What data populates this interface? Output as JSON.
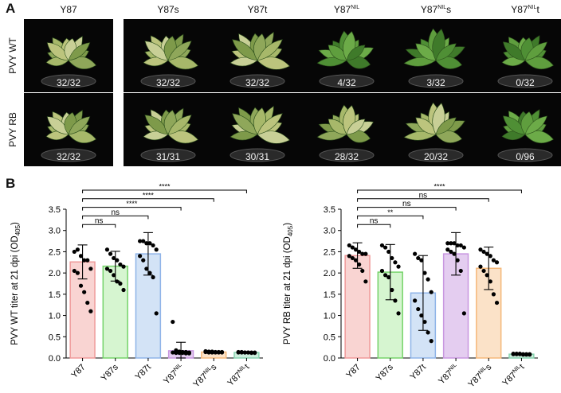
{
  "panel_a": {
    "letter": "A",
    "columns": [
      {
        "base": "Y87",
        "sup": "",
        "suffix": ""
      },
      {
        "base": "Y87s",
        "sup": "",
        "suffix": ""
      },
      {
        "base": "Y87t",
        "sup": "",
        "suffix": ""
      },
      {
        "base": "Y87",
        "sup": "NIL",
        "suffix": ""
      },
      {
        "base": "Y87",
        "sup": "NIL",
        "suffix": "s"
      },
      {
        "base": "Y87",
        "sup": "NIL",
        "suffix": "t"
      }
    ],
    "rows": [
      {
        "label": "PVY WT",
        "counts": [
          "32/32",
          "32/32",
          "32/32",
          "4/32",
          "3/32",
          "0/32"
        ]
      },
      {
        "label": "PVY RB",
        "counts": [
          "32/32",
          "31/31",
          "30/31",
          "28/32",
          "20/32",
          "0/96"
        ]
      }
    ]
  },
  "panel_b": {
    "letter": "B"
  },
  "chart_data": [
    {
      "type": "bar",
      "ylabel": "PVY WT  titer at 21 dpi (OD405)",
      "ylabel_base": "PVY WT  titer at 21 dpi (OD",
      "ylabel_sub": "405",
      "ylabel_end": ")",
      "ylim": [
        0,
        3.5
      ],
      "yticks": [
        "0.0",
        "0.5",
        "1.0",
        "1.5",
        "2.0",
        "2.5",
        "3.0",
        "3.5"
      ],
      "categories": [
        {
          "base": "Y87",
          "sup": "",
          "suffix": ""
        },
        {
          "base": "Y87s",
          "sup": "",
          "suffix": ""
        },
        {
          "base": "Y87t",
          "sup": "",
          "suffix": ""
        },
        {
          "base": "Y87",
          "sup": "NIL",
          "suffix": ""
        },
        {
          "base": "Y87",
          "sup": "NIL",
          "suffix": "s"
        },
        {
          "base": "Y87",
          "sup": "NIL",
          "suffix": "t"
        }
      ],
      "values": [
        2.26,
        2.16,
        2.45,
        0.17,
        0.14,
        0.13
      ],
      "errors": [
        0.4,
        0.35,
        0.5,
        0.2,
        0.02,
        0.01
      ],
      "colors": {
        "fill": [
          "#f9d4d2",
          "#d6f5d0",
          "#d3e3f6",
          "#e4cdf0",
          "#fbe2c8",
          "#cdeedd"
        ],
        "stroke": [
          "#ef9a9a",
          "#76d36a",
          "#8fb4e8",
          "#c896e0",
          "#f5b97b",
          "#88d4b0"
        ]
      },
      "points": [
        [
          2.5,
          2.55,
          2.4,
          2.3,
          2.3,
          2.1,
          2.05,
          2.0,
          1.7,
          1.55,
          1.3,
          1.1
        ],
        [
          2.55,
          2.45,
          2.35,
          2.3,
          2.2,
          2.15,
          2.1,
          2.05,
          1.95,
          1.8,
          1.75,
          1.6
        ],
        [
          2.75,
          2.75,
          2.7,
          2.7,
          2.65,
          2.55,
          2.4,
          2.3,
          2.1,
          2.0,
          1.9,
          1.05
        ],
        [
          0.85,
          0.18,
          0.15,
          0.14,
          0.14,
          0.13,
          0.13,
          0.12,
          0.12,
          0.12,
          0.11,
          0.11
        ],
        [
          0.16,
          0.15,
          0.15,
          0.14,
          0.14,
          0.14,
          0.14,
          0.13,
          0.13,
          0.13,
          0.13,
          0.13
        ],
        [
          0.14,
          0.14,
          0.13,
          0.13,
          0.13,
          0.13,
          0.13,
          0.13,
          0.13,
          0.13,
          0.12,
          0.12
        ]
      ],
      "comparisons": [
        {
          "from": 0,
          "to": 1,
          "label": "ns"
        },
        {
          "from": 0,
          "to": 2,
          "label": "ns"
        },
        {
          "from": 0,
          "to": 3,
          "label": "****"
        },
        {
          "from": 0,
          "to": 4,
          "label": "****"
        },
        {
          "from": 0,
          "to": 5,
          "label": "****"
        }
      ]
    },
    {
      "type": "bar",
      "ylabel": "PVY RB  titer at 21 dpi (OD405)",
      "ylabel_base": "PVY RB  titer at 21 dpi (OD",
      "ylabel_sub": "405",
      "ylabel_end": ")",
      "ylim": [
        0,
        3.5
      ],
      "yticks": [
        "0.0",
        "0.5",
        "1.0",
        "1.5",
        "2.0",
        "2.5",
        "3.0",
        "3.5"
      ],
      "categories": [
        {
          "base": "Y87",
          "sup": "",
          "suffix": ""
        },
        {
          "base": "Y87s",
          "sup": "",
          "suffix": ""
        },
        {
          "base": "Y87t",
          "sup": "",
          "suffix": ""
        },
        {
          "base": "Y87",
          "sup": "NIL",
          "suffix": ""
        },
        {
          "base": "Y87",
          "sup": "NIL",
          "suffix": "s"
        },
        {
          "base": "Y87",
          "sup": "NIL",
          "suffix": "t"
        }
      ],
      "values": [
        2.41,
        2.02,
        1.53,
        2.45,
        2.11,
        0.09
      ],
      "errors": [
        0.3,
        0.65,
        0.88,
        0.5,
        0.5,
        0.01
      ],
      "colors": {
        "fill": [
          "#f9d4d2",
          "#d6f5d0",
          "#d3e3f6",
          "#e4cdf0",
          "#fbe2c8",
          "#cdeedd"
        ],
        "stroke": [
          "#ef9a9a",
          "#76d36a",
          "#8fb4e8",
          "#c896e0",
          "#f5b97b",
          "#88d4b0"
        ]
      },
      "points": [
        [
          2.65,
          2.6,
          2.55,
          2.5,
          2.45,
          2.45,
          2.4,
          2.35,
          2.3,
          2.2,
          2.05,
          1.8
        ],
        [
          2.65,
          2.6,
          2.5,
          2.35,
          2.25,
          2.15,
          2.05,
          1.95,
          1.9,
          1.6,
          1.35,
          1.05
        ],
        [
          2.45,
          2.35,
          2.3,
          2.0,
          1.85,
          1.55,
          1.35,
          1.15,
          1.0,
          0.85,
          0.6,
          0.4
        ],
        [
          2.7,
          2.7,
          2.7,
          2.65,
          2.65,
          2.6,
          2.55,
          2.5,
          2.45,
          2.3,
          2.05,
          1.05
        ],
        [
          2.55,
          2.5,
          2.45,
          2.4,
          2.3,
          2.25,
          2.15,
          2.05,
          1.95,
          1.8,
          1.5,
          1.3
        ],
        [
          0.1,
          0.1,
          0.1,
          0.09,
          0.09,
          0.09,
          0.09,
          0.09,
          0.09,
          0.08,
          0.08,
          0.08
        ]
      ],
      "comparisons": [
        {
          "from": 0,
          "to": 1,
          "label": "ns"
        },
        {
          "from": 0,
          "to": 2,
          "label": "**"
        },
        {
          "from": 0,
          "to": 3,
          "label": "ns"
        },
        {
          "from": 0,
          "to": 4,
          "label": "ns"
        },
        {
          "from": 0,
          "to": 5,
          "label": "****"
        }
      ]
    }
  ]
}
